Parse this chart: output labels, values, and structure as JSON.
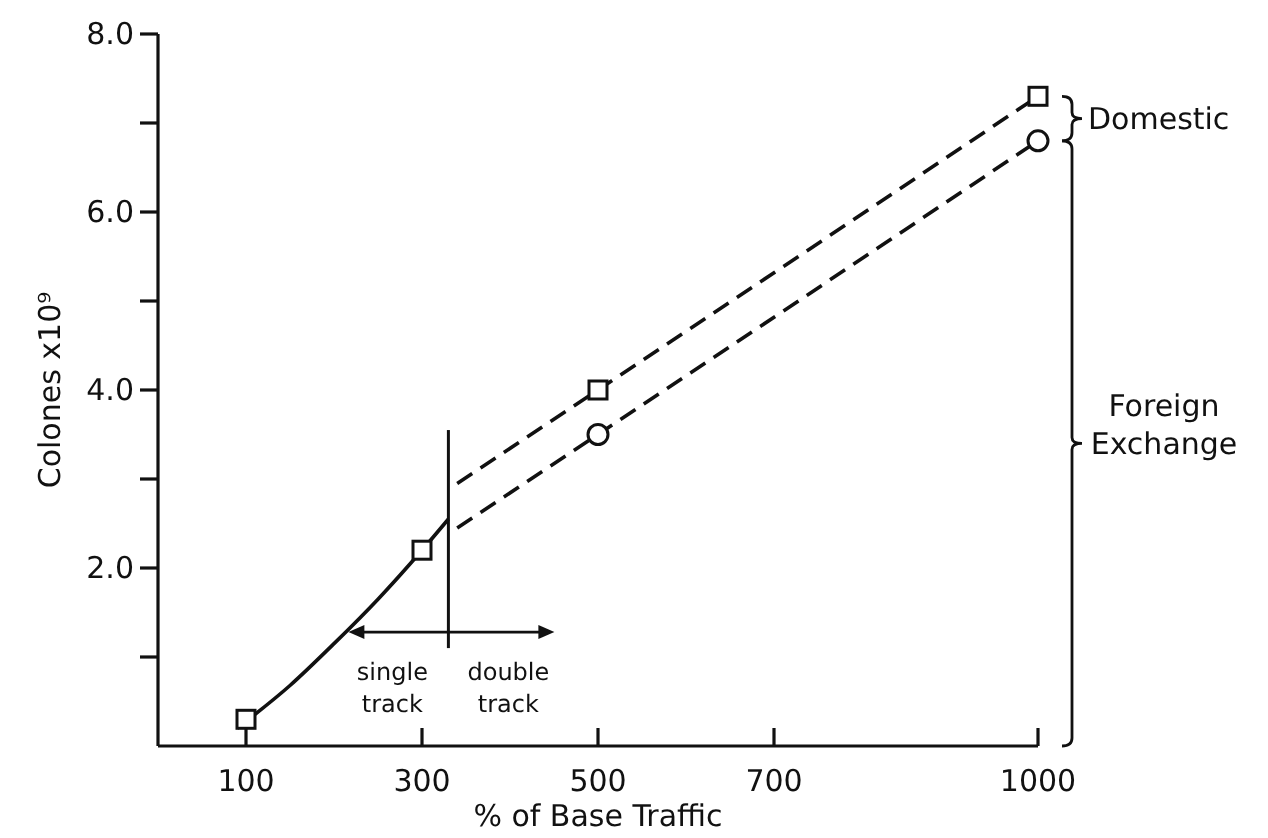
{
  "chart_data": {
    "type": "line",
    "xlabel": "% of Base Traffic",
    "ylabel": "Colones x10⁹",
    "xlim": [
      0,
      1000
    ],
    "xticks": [
      100,
      300,
      500,
      700,
      1000
    ],
    "ylim": [
      0,
      8
    ],
    "yticks": [
      {
        "value": 1,
        "label": null
      },
      {
        "value": 2,
        "label": "2.0"
      },
      {
        "value": 3,
        "label": null
      },
      {
        "value": 4,
        "label": "4.0"
      },
      {
        "value": 5,
        "label": null
      },
      {
        "value": 6,
        "label": "6.0"
      },
      {
        "value": 7,
        "label": null
      },
      {
        "value": 8,
        "label": "8.0"
      }
    ],
    "grid": false,
    "series": [
      {
        "color": "#111111",
        "line_style": "solid",
        "marker": "none",
        "x": [
          90,
          150,
          200,
          250,
          300,
          330
        ],
        "values": [
          0.2,
          0.68,
          1.15,
          1.65,
          2.2,
          2.55
        ]
      },
      {
        "color": "#111111",
        "line_style": "dashed",
        "marker": "none",
        "x": [
          340,
          500,
          1000
        ],
        "values": [
          2.95,
          4.0,
          7.3
        ]
      },
      {
        "color": "#111111",
        "line_style": "dashed",
        "marker": "none",
        "x": [
          340,
          500,
          1000
        ],
        "values": [
          2.45,
          3.5,
          6.8
        ]
      },
      {
        "type": "scatter",
        "color": "#111111",
        "marker": "square",
        "x": [
          100,
          300,
          500,
          1000
        ],
        "values": [
          0.3,
          2.2,
          4.0,
          7.3
        ]
      },
      {
        "type": "scatter",
        "color": "#111111",
        "marker": "circle",
        "x": [
          500,
          1000
        ],
        "values": [
          3.5,
          6.8
        ]
      }
    ],
    "ref_lines": [
      {
        "axis": "x",
        "value": 330,
        "label": null
      }
    ],
    "annotations": [
      {
        "text": "single track",
        "x": 330,
        "y": 1.28
      },
      {
        "text": "double track",
        "x": 330,
        "y": 1.28
      },
      "Domestic",
      "Foreign Exchange"
    ]
  }
}
